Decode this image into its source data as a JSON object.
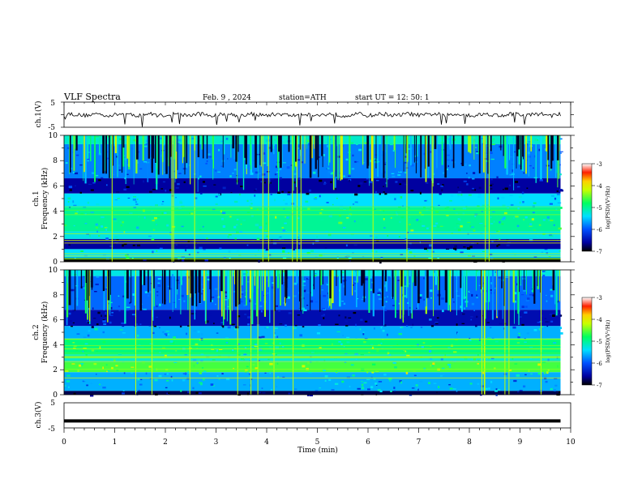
{
  "header": {
    "title": "VLF Spectra",
    "date": "Feb. 9 , 2024",
    "station": "station=ATH",
    "start": "start UT = 12: 50: 1"
  },
  "chart_data": [
    {
      "type": "line",
      "ylabel": "ch.1(V)",
      "ylim": [
        -5,
        5
      ],
      "yticks": [
        "5",
        "-5"
      ],
      "xlim": [
        0,
        10
      ],
      "trace_color": "#000000",
      "series": [
        {
          "x": [
            0,
            1,
            2,
            3,
            4,
            5,
            6,
            7,
            8,
            9,
            9.8
          ],
          "y": [
            0,
            0,
            0,
            0,
            0,
            0,
            0,
            0,
            0,
            0,
            0
          ]
        }
      ]
    },
    {
      "type": "heatmap",
      "ylabel": "ch.1\nFrequency (kHz)",
      "ylim": [
        0,
        10
      ],
      "yticks": [
        "0",
        "2",
        "4",
        "6",
        "8",
        "10"
      ],
      "xlim": [
        0,
        9.8
      ],
      "colorbar": {
        "label": "log(PSD)(V²/Hz)",
        "range": [
          -7,
          -3
        ],
        "ticks": [
          "-3",
          "-4",
          "-5",
          "-6",
          "-7"
        ]
      },
      "bands": [
        {
          "f": [
            9.3,
            10
          ],
          "level": -5.2
        },
        {
          "f": [
            6.6,
            9.3
          ],
          "level": -5.8
        },
        {
          "f": [
            5.4,
            6.6
          ],
          "level": -6.6
        },
        {
          "f": [
            4.3,
            5.4
          ],
          "level": -5.4
        },
        {
          "f": [
            2.4,
            4.3
          ],
          "level": -5.0
        },
        {
          "f": [
            1.8,
            2.4
          ],
          "level": -5.3
        },
        {
          "f": [
            1.0,
            1.8
          ],
          "level": -6.6
        },
        {
          "f": [
            0.3,
            1.0
          ],
          "level": -5.4
        },
        {
          "f": [
            0,
            0.3
          ],
          "level": -7.0
        }
      ]
    },
    {
      "type": "heatmap",
      "ylabel": "ch.2\nFrequency (kHz)",
      "ylim": [
        0,
        10
      ],
      "yticks": [
        "0",
        "2",
        "4",
        "6",
        "8",
        "10"
      ],
      "xlim": [
        0,
        9.8
      ],
      "colorbar": {
        "label": "log(PSD)(V²/Hz)",
        "range": [
          -7,
          -3
        ],
        "ticks": [
          "-3",
          "-4",
          "-5",
          "-6",
          "-7"
        ]
      },
      "bands": [
        {
          "f": [
            9.5,
            10
          ],
          "level": -5.3
        },
        {
          "f": [
            6.8,
            9.5
          ],
          "level": -5.9
        },
        {
          "f": [
            5.5,
            6.8
          ],
          "level": -6.5
        },
        {
          "f": [
            4.5,
            5.5
          ],
          "level": -5.6
        },
        {
          "f": [
            3.2,
            4.5
          ],
          "level": -4.9
        },
        {
          "f": [
            2.6,
            3.2
          ],
          "level": -5.2
        },
        {
          "f": [
            1.8,
            2.6
          ],
          "level": -4.6
        },
        {
          "f": [
            0.3,
            1.8
          ],
          "level": -5.6
        },
        {
          "f": [
            0,
            0.3
          ],
          "level": -6.8
        }
      ]
    },
    {
      "type": "line",
      "ylabel": "ch.3(V)",
      "ylim": [
        -5,
        5
      ],
      "yticks": [
        "5",
        "-5"
      ],
      "xlim": [
        0,
        10
      ],
      "xlabel": "Time (min)",
      "xticks": [
        "0",
        "1",
        "2",
        "3",
        "4",
        "5",
        "6",
        "7",
        "8",
        "9",
        "10"
      ],
      "trace_color": "#000000",
      "series": [
        {
          "x": [
            0,
            9.8
          ],
          "y": [
            -2.2,
            -2.2
          ]
        }
      ]
    }
  ]
}
